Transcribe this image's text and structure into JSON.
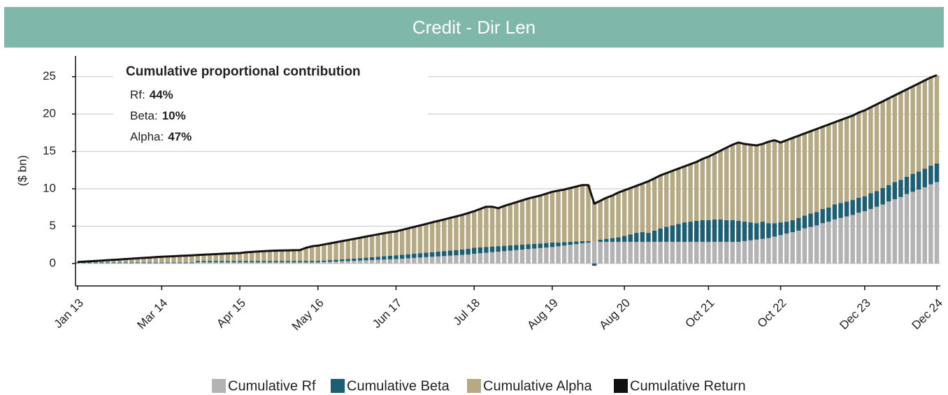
{
  "chart_data": {
    "type": "bar",
    "stacked": true,
    "title": "Credit - Dir Len",
    "y_label": "($ bn)",
    "annotation": {
      "title": "Cumulative proportional contribution",
      "rows": [
        {
          "label": "Rf:",
          "value": "44%"
        },
        {
          "label": "Beta:",
          "value": "10%"
        },
        {
          "label": "Alpha:",
          "value": "47%"
        }
      ]
    },
    "categories": [
      "Jan 13",
      null,
      null,
      null,
      null,
      null,
      null,
      null,
      null,
      null,
      null,
      null,
      null,
      null,
      "Mar 14",
      null,
      null,
      null,
      null,
      null,
      null,
      null,
      null,
      null,
      null,
      null,
      null,
      "Apr 15",
      null,
      null,
      null,
      null,
      null,
      null,
      null,
      null,
      null,
      null,
      null,
      null,
      "May 16",
      null,
      null,
      null,
      null,
      null,
      null,
      null,
      null,
      null,
      null,
      null,
      null,
      "Jun 17",
      null,
      null,
      null,
      null,
      null,
      null,
      null,
      null,
      null,
      null,
      null,
      null,
      "Jul 18",
      null,
      null,
      null,
      null,
      null,
      null,
      null,
      null,
      null,
      null,
      null,
      null,
      "Aug 19",
      null,
      null,
      null,
      null,
      null,
      null,
      null,
      null,
      null,
      null,
      null,
      "Aug 20",
      null,
      null,
      null,
      null,
      null,
      null,
      null,
      null,
      null,
      null,
      null,
      null,
      null,
      "Oct 21",
      null,
      null,
      null,
      null,
      null,
      null,
      null,
      null,
      null,
      null,
      null,
      "Oct 22",
      null,
      null,
      null,
      null,
      null,
      null,
      null,
      null,
      null,
      null,
      null,
      null,
      null,
      "Dec 23",
      null,
      null,
      null,
      null,
      null,
      null,
      null,
      null,
      null,
      null,
      null,
      "Dec 24"
    ],
    "series": [
      {
        "name": "Cumulative Rf",
        "color": "#b3b3b3",
        "values": [
          0.05,
          0.05,
          0.05,
          0.05,
          0.05,
          0.05,
          0.05,
          0.05,
          0.05,
          0.05,
          0.05,
          0.05,
          0.05,
          0.05,
          0.05,
          0.05,
          0.05,
          0.05,
          0.05,
          0.05,
          0.15,
          0.15,
          0.15,
          0.15,
          0.15,
          0.15,
          0.15,
          0.15,
          0.15,
          0.15,
          0.15,
          0.15,
          0.15,
          0.15,
          0.15,
          0.15,
          0.15,
          0.15,
          0.15,
          0.15,
          0.15,
          0.2,
          0.23,
          0.26,
          0.3,
          0.33,
          0.36,
          0.4,
          0.43,
          0.46,
          0.5,
          0.53,
          0.56,
          0.6,
          0.65,
          0.7,
          0.75,
          0.8,
          0.85,
          0.9,
          0.95,
          1.0,
          1.05,
          1.1,
          1.15,
          1.2,
          1.3,
          1.37,
          1.44,
          1.51,
          1.58,
          1.65,
          1.72,
          1.79,
          1.86,
          1.93,
          2.0,
          2.07,
          2.14,
          2.2,
          2.3,
          2.4,
          2.5,
          2.6,
          2.7,
          2.8,
          2.9,
          2.9,
          2.9,
          2.9,
          2.9,
          2.9,
          2.9,
          2.9,
          2.9,
          2.9,
          2.9,
          2.9,
          2.9,
          2.9,
          2.9,
          2.9,
          2.9,
          2.9,
          2.9,
          2.9,
          2.9,
          2.9,
          2.9,
          2.9,
          2.9,
          3.0,
          3.1,
          3.2,
          3.3,
          3.4,
          3.6,
          3.8,
          4.0,
          4.2,
          4.4,
          4.7,
          4.9,
          5.1,
          5.4,
          5.6,
          5.9,
          6.1,
          6.3,
          6.5,
          6.8,
          7.0,
          7.3,
          7.6,
          7.9,
          8.3,
          8.6,
          8.9,
          9.3,
          9.6,
          9.9,
          10.2,
          10.6,
          10.9
        ]
      },
      {
        "name": "Cumulative Beta",
        "color": "#1c5e73",
        "values": [
          0.1,
          0.1,
          0.1,
          0.1,
          0.1,
          0.1,
          0.1,
          0.1,
          0.1,
          0.1,
          0.1,
          0.1,
          0.1,
          0.1,
          0.1,
          0.1,
          0.1,
          0.1,
          0.1,
          0.1,
          0.2,
          0.2,
          0.2,
          0.2,
          0.2,
          0.2,
          0.2,
          0.2,
          0.2,
          0.2,
          0.2,
          0.2,
          0.2,
          0.2,
          0.2,
          0.2,
          0.2,
          0.2,
          0.2,
          0.2,
          0.2,
          0.2,
          0.22,
          0.24,
          0.26,
          0.28,
          0.3,
          0.32,
          0.35,
          0.38,
          0.41,
          0.44,
          0.47,
          0.5,
          0.52,
          0.54,
          0.56,
          0.58,
          0.6,
          0.62,
          0.64,
          0.66,
          0.68,
          0.7,
          0.73,
          0.76,
          0.8,
          0.8,
          0.78,
          0.76,
          0.74,
          0.72,
          0.7,
          0.68,
          0.66,
          0.64,
          0.62,
          0.6,
          0.6,
          0.6,
          0.5,
          0.45,
          0.4,
          0.35,
          0.3,
          0.2,
          -0.3,
          0.3,
          0.4,
          0.5,
          0.6,
          0.8,
          1.0,
          1.2,
          1.3,
          1.2,
          1.5,
          1.8,
          2.0,
          2.2,
          2.4,
          2.6,
          2.7,
          2.8,
          2.9,
          2.9,
          3.0,
          3.0,
          2.9,
          2.9,
          2.8,
          2.6,
          2.4,
          2.2,
          2.3,
          2.0,
          1.8,
          1.7,
          1.6,
          1.6,
          1.7,
          1.7,
          1.8,
          1.8,
          1.9,
          1.9,
          2.0,
          2.0,
          2.0,
          2.0,
          2.0,
          2.0,
          2.1,
          2.1,
          2.2,
          2.2,
          2.3,
          2.3,
          2.3,
          2.4,
          2.4,
          2.5,
          2.5,
          2.5
        ]
      },
      {
        "name": "Cumulative Alpha",
        "color": "#b5aa84",
        "values": [
          0.05,
          0.1,
          0.15,
          0.2,
          0.25,
          0.3,
          0.35,
          0.4,
          0.45,
          0.5,
          0.55,
          0.6,
          0.65,
          0.7,
          0.75,
          0.79,
          0.83,
          0.87,
          0.91,
          0.95,
          0.79,
          0.83,
          0.87,
          0.91,
          0.95,
          0.99,
          1.02,
          1.05,
          1.15,
          1.2,
          1.25,
          1.3,
          1.35,
          1.37,
          1.39,
          1.41,
          1.43,
          1.45,
          1.75,
          1.95,
          2.05,
          2.15,
          2.25,
          2.35,
          2.44,
          2.54,
          2.64,
          2.73,
          2.82,
          2.91,
          2.99,
          3.08,
          3.17,
          3.2,
          3.33,
          3.46,
          3.59,
          3.72,
          3.85,
          3.98,
          4.11,
          4.24,
          4.37,
          4.5,
          4.62,
          4.79,
          4.9,
          5.13,
          5.38,
          5.33,
          5.08,
          5.33,
          5.53,
          5.73,
          5.93,
          6.13,
          6.28,
          6.43,
          6.61,
          6.8,
          6.95,
          7.05,
          7.2,
          7.35,
          7.5,
          7.5,
          5.4,
          5.2,
          5.5,
          5.7,
          6.0,
          6.1,
          6.2,
          6.3,
          6.5,
          6.9,
          7.0,
          7.1,
          7.2,
          7.3,
          7.4,
          7.5,
          7.7,
          7.9,
          8.2,
          8.5,
          8.8,
          9.2,
          9.7,
          10.1,
          10.5,
          10.4,
          10.4,
          10.4,
          10.4,
          10.9,
          11.1,
          10.7,
          10.9,
          11.0,
          11.0,
          11.0,
          11.0,
          11.1,
          11.0,
          11.1,
          11.0,
          11.1,
          11.2,
          11.3,
          11.4,
          11.5,
          11.5,
          11.6,
          11.6,
          11.6,
          11.6,
          11.7,
          11.7,
          11.7,
          11.8,
          11.8,
          11.8,
          11.8
        ]
      },
      {
        "name": "Cumulative Return",
        "color": "#111111",
        "type": "line",
        "values": [
          0.2,
          0.25,
          0.3,
          0.35,
          0.4,
          0.45,
          0.5,
          0.55,
          0.6,
          0.65,
          0.7,
          0.75,
          0.8,
          0.85,
          0.9,
          0.94,
          0.98,
          1.02,
          1.06,
          1.1,
          1.14,
          1.18,
          1.22,
          1.26,
          1.3,
          1.34,
          1.37,
          1.4,
          1.5,
          1.55,
          1.6,
          1.65,
          1.7,
          1.72,
          1.74,
          1.76,
          1.78,
          1.8,
          2.1,
          2.3,
          2.4,
          2.55,
          2.7,
          2.85,
          3.0,
          3.15,
          3.3,
          3.45,
          3.6,
          3.75,
          3.9,
          4.05,
          4.2,
          4.3,
          4.5,
          4.7,
          4.9,
          5.1,
          5.3,
          5.5,
          5.7,
          5.9,
          6.1,
          6.3,
          6.5,
          6.75,
          7.0,
          7.3,
          7.6,
          7.6,
          7.4,
          7.7,
          7.95,
          8.2,
          8.45,
          8.7,
          8.9,
          9.1,
          9.35,
          9.6,
          9.75,
          9.9,
          10.1,
          10.3,
          10.5,
          10.5,
          8.0,
          8.4,
          8.8,
          9.1,
          9.5,
          9.8,
          10.1,
          10.4,
          10.7,
          11.0,
          11.4,
          11.8,
          12.1,
          12.4,
          12.7,
          13.0,
          13.3,
          13.6,
          14.0,
          14.3,
          14.7,
          15.1,
          15.5,
          15.9,
          16.2,
          16.0,
          15.9,
          15.8,
          16.0,
          16.3,
          16.5,
          16.2,
          16.5,
          16.8,
          17.1,
          17.4,
          17.7,
          18.0,
          18.3,
          18.6,
          18.9,
          19.2,
          19.5,
          19.8,
          20.2,
          20.5,
          20.9,
          21.3,
          21.7,
          22.1,
          22.5,
          22.9,
          23.3,
          23.7,
          24.1,
          24.5,
          24.9,
          25.2
        ]
      }
    ],
    "ylim": [
      -3,
      26
    ],
    "yticks": [
      0,
      5,
      10,
      15,
      20,
      25
    ],
    "grid": true,
    "legend": "bottom"
  }
}
